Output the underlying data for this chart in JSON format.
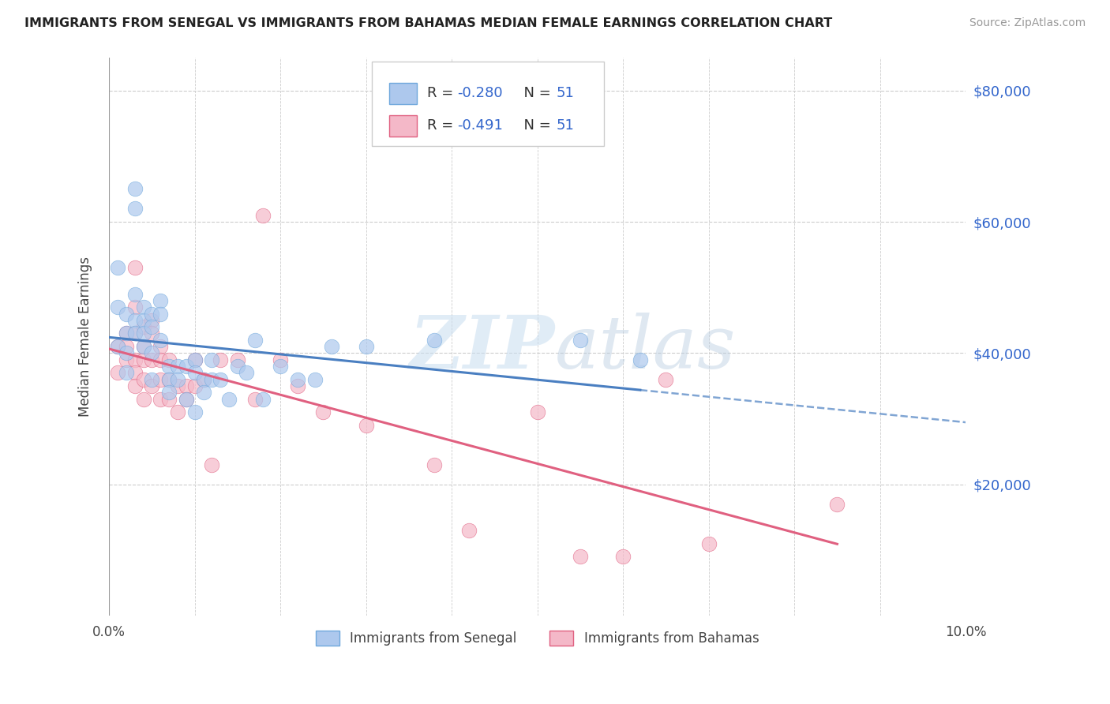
{
  "title": "IMMIGRANTS FROM SENEGAL VS IMMIGRANTS FROM BAHAMAS MEDIAN FEMALE EARNINGS CORRELATION CHART",
  "source": "Source: ZipAtlas.com",
  "ylabel": "Median Female Earnings",
  "y_tick_labels": [
    "$20,000",
    "$40,000",
    "$60,000",
    "$80,000"
  ],
  "y_tick_values": [
    20000,
    40000,
    60000,
    80000
  ],
  "xlim": [
    0.0,
    0.1
  ],
  "ylim": [
    0,
    85000
  ],
  "R_senegal": -0.28,
  "R_bahamas": -0.491,
  "N_senegal": 51,
  "N_bahamas": 51,
  "color_senegal_fill": "#adc8ed",
  "color_senegal_edge": "#6fa8dc",
  "color_bahamas_fill": "#f4b8c8",
  "color_bahamas_edge": "#e06080",
  "color_blue_line": "#4a7fc1",
  "color_pink_line": "#e06080",
  "color_value": "#3366cc",
  "legend_label_senegal": "Immigrants from Senegal",
  "legend_label_bahamas": "Immigrants from Bahamas",
  "watermark_zip": "ZIP",
  "watermark_atlas": "atlas",
  "senegal_x": [
    0.001,
    0.001,
    0.001,
    0.002,
    0.002,
    0.002,
    0.002,
    0.003,
    0.003,
    0.003,
    0.003,
    0.003,
    0.004,
    0.004,
    0.004,
    0.004,
    0.005,
    0.005,
    0.005,
    0.005,
    0.006,
    0.006,
    0.006,
    0.007,
    0.007,
    0.007,
    0.008,
    0.008,
    0.009,
    0.009,
    0.01,
    0.01,
    0.01,
    0.011,
    0.011,
    0.012,
    0.012,
    0.013,
    0.014,
    0.015,
    0.016,
    0.017,
    0.018,
    0.02,
    0.022,
    0.024,
    0.026,
    0.03,
    0.038,
    0.055,
    0.062
  ],
  "senegal_y": [
    53000,
    47000,
    41000,
    46000,
    43000,
    40000,
    37000,
    65000,
    62000,
    49000,
    45000,
    43000,
    47000,
    45000,
    43000,
    41000,
    46000,
    44000,
    40000,
    36000,
    48000,
    46000,
    42000,
    38000,
    36000,
    34000,
    38000,
    36000,
    38000,
    33000,
    39000,
    37000,
    31000,
    36000,
    34000,
    39000,
    36000,
    36000,
    33000,
    38000,
    37000,
    42000,
    33000,
    38000,
    36000,
    36000,
    41000,
    41000,
    42000,
    42000,
    39000
  ],
  "bahamas_x": [
    0.001,
    0.001,
    0.002,
    0.002,
    0.002,
    0.003,
    0.003,
    0.003,
    0.003,
    0.003,
    0.003,
    0.004,
    0.004,
    0.004,
    0.004,
    0.004,
    0.005,
    0.005,
    0.005,
    0.005,
    0.006,
    0.006,
    0.006,
    0.006,
    0.007,
    0.007,
    0.007,
    0.008,
    0.008,
    0.009,
    0.009,
    0.01,
    0.01,
    0.011,
    0.012,
    0.013,
    0.015,
    0.017,
    0.018,
    0.02,
    0.022,
    0.025,
    0.03,
    0.038,
    0.042,
    0.05,
    0.055,
    0.06,
    0.065,
    0.07,
    0.085
  ],
  "bahamas_y": [
    41000,
    37000,
    43000,
    41000,
    39000,
    53000,
    47000,
    43000,
    39000,
    37000,
    35000,
    44000,
    41000,
    39000,
    36000,
    33000,
    45000,
    43000,
    39000,
    35000,
    41000,
    39000,
    36000,
    33000,
    39000,
    36000,
    33000,
    35000,
    31000,
    35000,
    33000,
    39000,
    35000,
    36000,
    23000,
    39000,
    39000,
    33000,
    61000,
    39000,
    35000,
    31000,
    29000,
    23000,
    13000,
    31000,
    9000,
    9000,
    36000,
    11000,
    17000
  ]
}
